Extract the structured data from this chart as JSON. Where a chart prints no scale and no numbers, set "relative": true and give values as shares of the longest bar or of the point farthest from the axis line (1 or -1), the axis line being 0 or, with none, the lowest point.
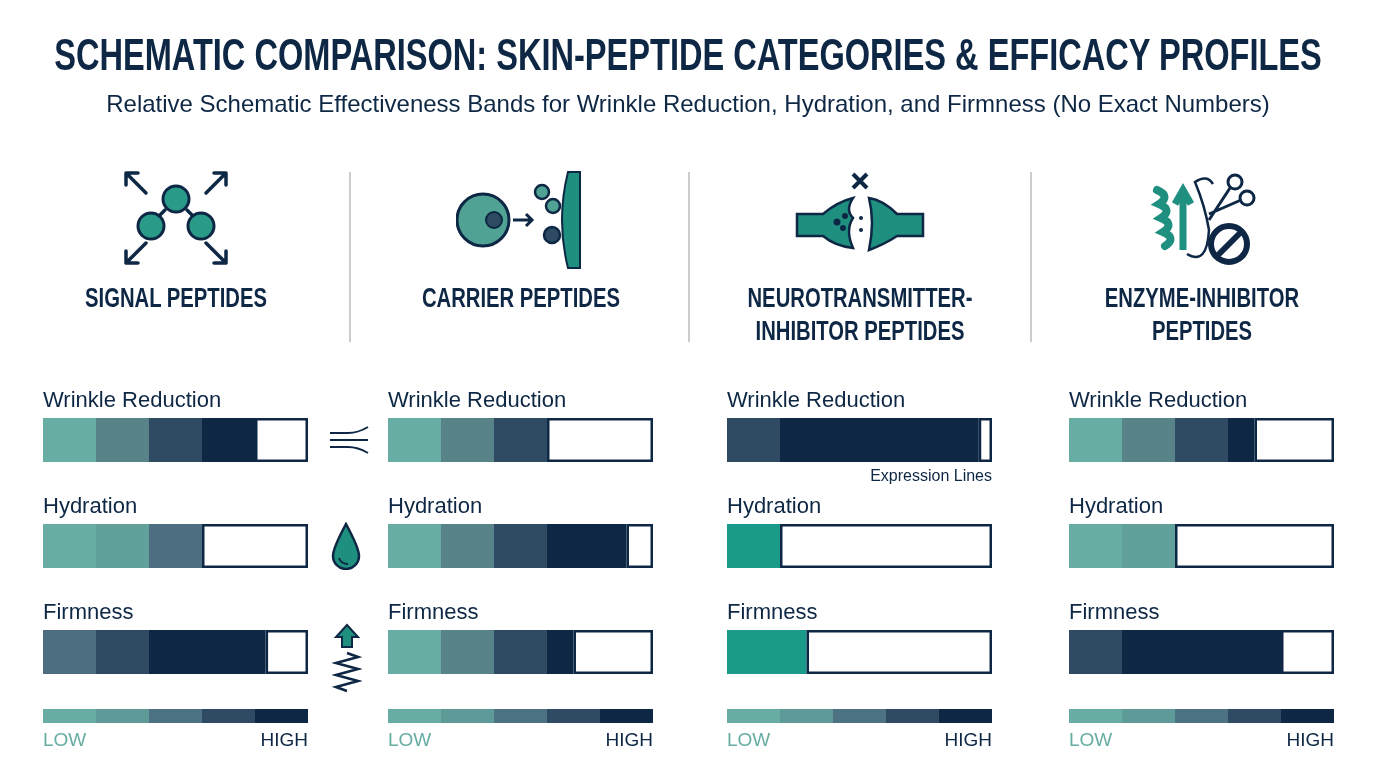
{
  "chart_data": [
    {
      "type": "other",
      "title": "SCHEMATIC COMPARISON: SKIN-PEPTIDE CATEGORIES & EFFICACY PROFILES",
      "subtitle": "Relative Schematic Effectiveness Bands for Wrinkle Reduction, Hydration, and Firmness (No Exact Numbers)"
    },
    {
      "type": "bar",
      "title": "SIGNAL PEPTIDES",
      "orientation": "horizontal",
      "stacked": true,
      "relative": true,
      "categories": [
        "Wrinkle Reduction",
        "Hydration",
        "Firmness"
      ],
      "annotations": [
        "LOW",
        "HIGH"
      ],
      "series": [
        {
          "color": "#67ada3",
          "values": [
            0.2,
            0.2,
            null
          ]
        },
        {
          "color": "#62a09c",
          "values": [
            null,
            0.2,
            null
          ]
        },
        {
          "color": "#588489",
          "values": [
            0.2,
            null,
            null
          ]
        },
        {
          "color": "#4d6e80",
          "values": [
            null,
            0.2,
            0.2
          ]
        },
        {
          "color": "#2f4a63",
          "values": [
            0.2,
            null,
            0.2
          ]
        },
        {
          "color": "#0d2744",
          "values": [
            0.2,
            null,
            0.44
          ]
        },
        {
          "color": "#ffffff",
          "values": [
            0.2,
            0.4,
            0.16
          ]
        }
      ]
    },
    {
      "type": "bar",
      "title": "CARRIER PEPTIDES",
      "orientation": "horizontal",
      "stacked": true,
      "relative": true,
      "categories": [
        "Wrinkle Reduction",
        "Hydration",
        "Firmness"
      ],
      "annotations": [
        "LOW",
        "HIGH"
      ],
      "series": [
        {
          "color": "#67ada3",
          "values": [
            0.2,
            0.2,
            0.2
          ]
        },
        {
          "color": "#588489",
          "values": [
            0.2,
            0.2,
            0.2
          ]
        },
        {
          "color": "#2f4a63",
          "values": [
            0.2,
            0.2,
            0.2
          ]
        },
        {
          "color": "#0d2744",
          "values": [
            null,
            0.3,
            0.1
          ]
        },
        {
          "color": "#ffffff",
          "values": [
            0.4,
            0.1,
            0.3
          ]
        }
      ]
    },
    {
      "type": "bar",
      "title": "NEUROTRANSMITTER-INHIBITOR PEPTIDES",
      "orientation": "horizontal",
      "stacked": true,
      "relative": true,
      "categories": [
        "Wrinkle Reduction",
        "Hydration",
        "Firmness"
      ],
      "annotations": [
        {
          "text": "Expression Lines",
          "x": 1,
          "y": "Wrinkle Reduction"
        },
        "LOW",
        "HIGH"
      ],
      "series": [
        {
          "color": "#1a9a88",
          "values": [
            null,
            0.2,
            0.3
          ]
        },
        {
          "color": "#2f4a63",
          "values": [
            0.2,
            null,
            null
          ]
        },
        {
          "color": "#0d2744",
          "values": [
            0.75,
            null,
            null
          ]
        },
        {
          "color": "#ffffff",
          "values": [
            0.05,
            0.8,
            0.7
          ]
        }
      ]
    },
    {
      "type": "bar",
      "title": "ENZYME-INHIBITOR PEPTIDES",
      "orientation": "horizontal",
      "stacked": true,
      "relative": true,
      "categories": [
        "Wrinkle Reduction",
        "Hydration",
        "Firmness"
      ],
      "annotations": [
        "LOW",
        "HIGH"
      ],
      "series": [
        {
          "color": "#67ada3",
          "values": [
            0.2,
            0.2,
            null
          ]
        },
        {
          "color": "#62a09c",
          "values": [
            null,
            0.2,
            null
          ]
        },
        {
          "color": "#588489",
          "values": [
            0.2,
            null,
            null
          ]
        },
        {
          "color": "#2f4a63",
          "values": [
            0.2,
            null,
            0.2
          ]
        },
        {
          "color": "#0d2744",
          "values": [
            0.1,
            null,
            0.6
          ]
        },
        {
          "color": "#ffffff",
          "values": [
            0.3,
            0.6,
            0.2
          ]
        }
      ]
    }
  ]
}
